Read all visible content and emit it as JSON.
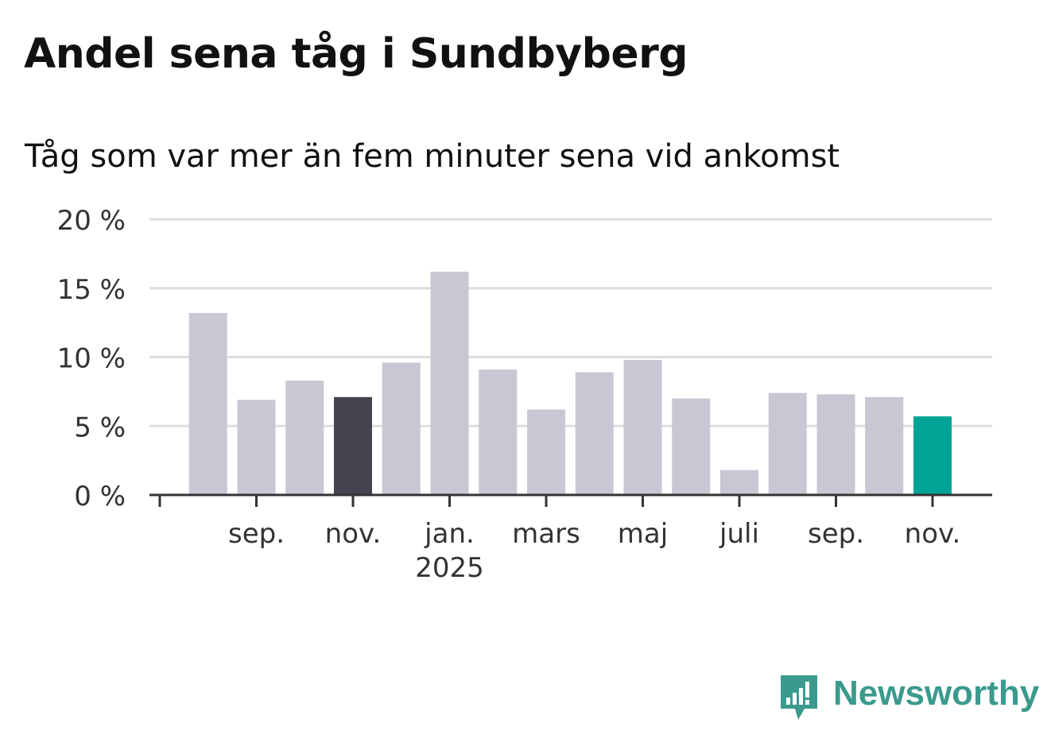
{
  "title": "Andel sena tåg i Sundbyberg",
  "subtitle": "Tåg som var mer än fem minuter sena vid ankomst",
  "brand": {
    "name": "Newsworthy",
    "color": "#3a9a8e"
  },
  "colors": {
    "bar_default": "#c8c7d3",
    "bar_highlight_prev_year": "#45434f",
    "bar_highlight_latest": "#00a497",
    "grid": "#dddddd",
    "axis": "#333333"
  },
  "chart_data": {
    "type": "bar",
    "title": "Andel sena tåg i Sundbyberg",
    "subtitle": "Tåg som var mer än fem minuter sena vid ankomst",
    "xlabel": "",
    "ylabel": "",
    "ylim": [
      0,
      20
    ],
    "y_ticks": [
      "0 %",
      "5 %",
      "10 %",
      "15 %",
      "20 %"
    ],
    "grid": true,
    "x_tick_labels": [
      {
        "month": "2024-09",
        "label": "sep.",
        "sublabel": ""
      },
      {
        "month": "2024-11",
        "label": "nov.",
        "sublabel": ""
      },
      {
        "month": "2025-01",
        "label": "jan.",
        "sublabel": "2025"
      },
      {
        "month": "2025-03",
        "label": "mars",
        "sublabel": ""
      },
      {
        "month": "2025-05",
        "label": "maj",
        "sublabel": ""
      },
      {
        "month": "2025-07",
        "label": "juli",
        "sublabel": ""
      },
      {
        "month": "2025-09",
        "label": "sep.",
        "sublabel": ""
      },
      {
        "month": "2025-11",
        "label": "nov.",
        "sublabel": ""
      }
    ],
    "series": [
      {
        "months": [
          "2024-08",
          "2024-09",
          "2024-10",
          "2024-11",
          "2024-12",
          "2025-01",
          "2025-02",
          "2025-03",
          "2025-04",
          "2025-05",
          "2025-06",
          "2025-07",
          "2025-08",
          "2025-09",
          "2025-10",
          "2025-11"
        ],
        "values": [
          13.2,
          6.9,
          8.3,
          7.1,
          9.6,
          16.2,
          9.1,
          6.2,
          8.9,
          9.8,
          7.0,
          1.8,
          7.4,
          7.3,
          7.1,
          5.7
        ],
        "highlight": [
          "",
          "",
          "",
          "prev_year",
          "",
          "",
          "",
          "",
          "",
          "",
          "",
          "",
          "",
          "",
          "",
          "latest"
        ]
      }
    ]
  }
}
